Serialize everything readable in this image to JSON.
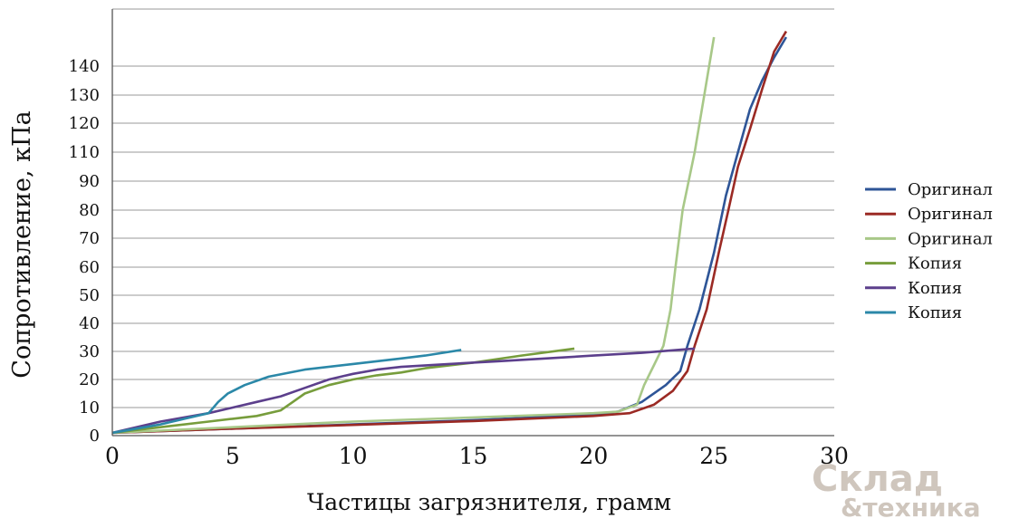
{
  "chart_data": {
    "type": "line",
    "title": "",
    "xlabel": "Частицы загрязнителя, грамм",
    "ylabel": "Сопротивление, кПа",
    "xlim": [
      0,
      30
    ],
    "x_ticks": [
      "0",
      "5",
      "10",
      "15",
      "20",
      "25",
      "30"
    ],
    "y_ticks": [
      "0",
      "10",
      "20",
      "30",
      "40",
      "50",
      "60",
      "70",
      "80",
      "90",
      "110",
      "120",
      "130",
      "140"
    ],
    "grid": "horizontal",
    "legend_position": "right",
    "series": [
      {
        "name": "Оригинал",
        "color": "#2e5597",
        "points": [
          [
            0,
            1
          ],
          [
            5,
            2.5
          ],
          [
            10,
            4
          ],
          [
            15,
            5.5
          ],
          [
            20,
            7.5
          ],
          [
            21,
            8.5
          ],
          [
            22,
            12
          ],
          [
            23,
            18
          ],
          [
            23.6,
            23
          ],
          [
            23.9,
            32
          ],
          [
            24.4,
            45
          ],
          [
            25,
            65
          ],
          [
            25.5,
            85
          ],
          [
            26,
            110
          ],
          [
            26.5,
            125
          ],
          [
            27,
            135
          ],
          [
            27.5,
            143
          ],
          [
            28,
            150
          ]
        ]
      },
      {
        "name": "Оригинал",
        "color": "#9b2a24",
        "points": [
          [
            0,
            1
          ],
          [
            5,
            2.5
          ],
          [
            10,
            3.8
          ],
          [
            15,
            5.2
          ],
          [
            20,
            7
          ],
          [
            21.5,
            8
          ],
          [
            22.5,
            11
          ],
          [
            23.3,
            16
          ],
          [
            23.9,
            23
          ],
          [
            24.2,
            32
          ],
          [
            24.7,
            45
          ],
          [
            25.2,
            65
          ],
          [
            25.6,
            80
          ],
          [
            26,
            100
          ],
          [
            26.5,
            118
          ],
          [
            27,
            132
          ],
          [
            27.5,
            145
          ],
          [
            28,
            152
          ]
        ]
      },
      {
        "name": "Оригинал",
        "color": "#a8c888",
        "points": [
          [
            0,
            1
          ],
          [
            5,
            3
          ],
          [
            10,
            5
          ],
          [
            15,
            6.5
          ],
          [
            20,
            8
          ],
          [
            21,
            8.5
          ],
          [
            21.8,
            11
          ],
          [
            22.1,
            18
          ],
          [
            22.5,
            25
          ],
          [
            22.9,
            32
          ],
          [
            23.2,
            45
          ],
          [
            23.4,
            60
          ],
          [
            23.7,
            80
          ],
          [
            24.2,
            110
          ],
          [
            24.6,
            130
          ],
          [
            25,
            150
          ]
        ]
      },
      {
        "name": "Копия",
        "color": "#779d3c",
        "points": [
          [
            0,
            1
          ],
          [
            2,
            3
          ],
          [
            4,
            5
          ],
          [
            5,
            6
          ],
          [
            6,
            7
          ],
          [
            7,
            9
          ],
          [
            7.5,
            12
          ],
          [
            8,
            15
          ],
          [
            9,
            18
          ],
          [
            10,
            20
          ],
          [
            11,
            21.5
          ],
          [
            12,
            22.5
          ],
          [
            13,
            24
          ],
          [
            15,
            26
          ],
          [
            17,
            28.5
          ],
          [
            19.2,
            31
          ]
        ]
      },
      {
        "name": "Копия",
        "color": "#5c3f8c",
        "points": [
          [
            0,
            1
          ],
          [
            2,
            5
          ],
          [
            4,
            8
          ],
          [
            6,
            12
          ],
          [
            7,
            14
          ],
          [
            8,
            17
          ],
          [
            9,
            20
          ],
          [
            10,
            22
          ],
          [
            11,
            23.5
          ],
          [
            12,
            24.5
          ],
          [
            14,
            25.5
          ],
          [
            16,
            26.5
          ],
          [
            18,
            27.5
          ],
          [
            20,
            28.5
          ],
          [
            22,
            29.5
          ],
          [
            24.2,
            31
          ]
        ]
      },
      {
        "name": "Копия",
        "color": "#2b88a8",
        "points": [
          [
            0,
            1
          ],
          [
            1,
            2.5
          ],
          [
            2,
            4
          ],
          [
            3,
            6
          ],
          [
            4,
            8
          ],
          [
            4.4,
            12
          ],
          [
            4.8,
            15
          ],
          [
            5.5,
            18
          ],
          [
            6.5,
            21
          ],
          [
            8,
            23.5
          ],
          [
            10,
            25.5
          ],
          [
            12,
            27.5
          ],
          [
            13,
            28.5
          ],
          [
            14.5,
            30.5
          ]
        ]
      }
    ]
  },
  "watermark": {
    "line1": "Склад",
    "line2": "&техника"
  }
}
